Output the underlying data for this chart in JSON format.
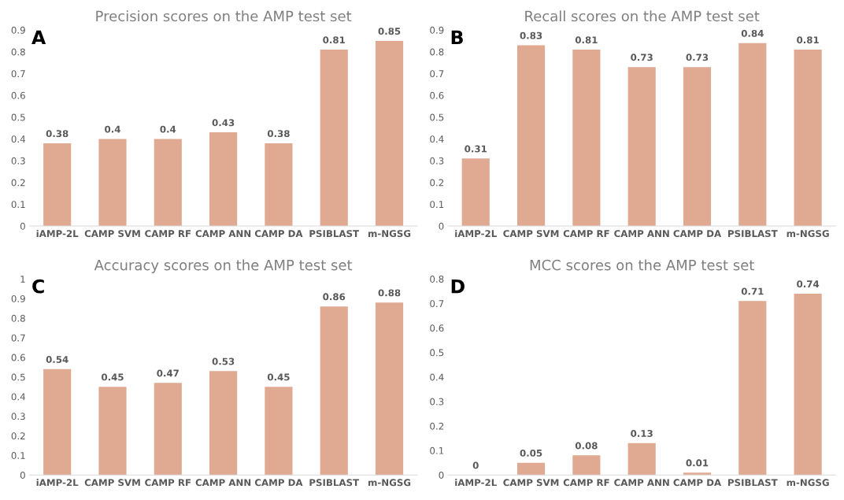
{
  "chart_data": [
    {
      "type": "bar",
      "title": "Precision scores on the AMP test set",
      "annotations": [
        "A"
      ],
      "categories": [
        "iAMP-2L",
        "CAMP SVM",
        "CAMP RF",
        "CAMP ANN",
        "CAMP DA",
        "PSIBLAST",
        "m-NGSG"
      ],
      "values": [
        0.38,
        0.4,
        0.4,
        0.43,
        0.38,
        0.81,
        0.85
      ],
      "color": "#e0aa92",
      "ylim": [
        0,
        0.9
      ],
      "yticks": [
        0,
        0.1,
        0.2,
        0.3,
        0.4,
        0.5,
        0.6,
        0.7,
        0.8,
        0.9
      ],
      "data_labels": true,
      "grid": false,
      "legend": false
    },
    {
      "type": "bar",
      "title": "Recall scores on the AMP test set",
      "annotations": [
        "B"
      ],
      "categories": [
        "iAMP-2L",
        "CAMP SVM",
        "CAMP RF",
        "CAMP ANN",
        "CAMP DA",
        "PSIBLAST",
        "m-NGSG"
      ],
      "values": [
        0.31,
        0.83,
        0.81,
        0.73,
        0.73,
        0.84,
        0.81
      ],
      "color": "#e0aa92",
      "ylim": [
        0,
        0.9
      ],
      "yticks": [
        0,
        0.1,
        0.2,
        0.3,
        0.4,
        0.5,
        0.6,
        0.7,
        0.8,
        0.9
      ],
      "data_labels": true,
      "grid": false,
      "legend": false
    },
    {
      "type": "bar",
      "title": "Accuracy scores on the AMP test set",
      "annotations": [
        "C"
      ],
      "categories": [
        "iAMP-2L",
        "CAMP SVM",
        "CAMP RF",
        "CAMP ANN",
        "CAMP DA",
        "PSIBLAST",
        "m-NGSG"
      ],
      "values": [
        0.54,
        0.45,
        0.47,
        0.53,
        0.45,
        0.86,
        0.88
      ],
      "color": "#e0aa92",
      "ylim": [
        0,
        1
      ],
      "yticks": [
        0,
        0.1,
        0.2,
        0.3,
        0.4,
        0.5,
        0.6,
        0.7,
        0.8,
        0.9,
        1
      ],
      "data_labels": true,
      "grid": false,
      "legend": false
    },
    {
      "type": "bar",
      "title": "MCC scores on the AMP test set",
      "annotations": [
        "D"
      ],
      "categories": [
        "iAMP-2L",
        "CAMP SVM",
        "CAMP RF",
        "CAMP ANN",
        "CAMP DA",
        "PSIBLAST",
        "m-NGSG"
      ],
      "values": [
        0,
        0.05,
        0.08,
        0.13,
        0.01,
        0.71,
        0.74
      ],
      "color": "#e0aa92",
      "ylim": [
        0,
        0.8
      ],
      "yticks": [
        0,
        0.1,
        0.2,
        0.3,
        0.4,
        0.5,
        0.6,
        0.7,
        0.8
      ],
      "data_labels": true,
      "grid": false,
      "legend": false
    }
  ]
}
